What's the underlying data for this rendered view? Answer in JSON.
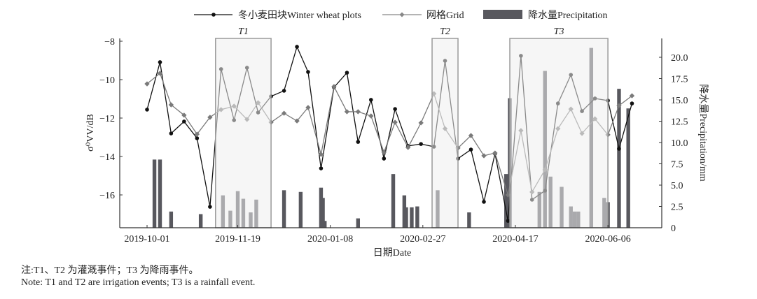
{
  "chart_data": {
    "type": "line+bar",
    "xlabel": "日期Date",
    "ylabel_left": "σ⁰VV/dB",
    "ylabel_right": "降水量Precipitation/mm",
    "ylim_left": [
      -17.7,
      -8
    ],
    "ylim_right": [
      0,
      22
    ],
    "x_range": [
      "2019-09-20",
      "2020-06-31"
    ],
    "x_ticks": [
      "2019-10-01",
      "2019-11-19",
      "2020-01-08",
      "2020-02-27",
      "2020-04-17",
      "2020-06-06"
    ],
    "y_left_ticks": [
      -8,
      -10,
      -12,
      -14,
      -16
    ],
    "y_right_ticks": [
      0,
      2.5,
      5.0,
      7.5,
      10.0,
      12.5,
      15.0,
      17.5,
      20.0
    ],
    "legend": {
      "placement": "top-center",
      "entries": [
        "冬小麦田块Winter wheat plots",
        "网格Grid",
        "降水量Precipitation"
      ]
    },
    "dates": [
      "2019-10-01",
      "2019-10-08",
      "2019-10-14",
      "2019-10-21",
      "2019-10-28",
      "2019-11-04",
      "2019-11-10",
      "2019-11-17",
      "2019-11-24",
      "2019-11-30",
      "2019-12-07",
      "2019-12-14",
      "2019-12-21",
      "2019-12-27",
      "2020-01-03",
      "2020-01-10",
      "2020-01-17",
      "2020-01-23",
      "2020-01-30",
      "2020-02-06",
      "2020-02-12",
      "2020-02-19",
      "2020-02-26",
      "2020-03-04",
      "2020-03-10",
      "2020-03-17",
      "2020-03-24",
      "2020-03-31",
      "2020-04-06",
      "2020-04-13",
      "2020-04-20",
      "2020-04-26",
      "2020-05-03",
      "2020-05-10",
      "2020-05-17",
      "2020-05-23",
      "2020-05-30",
      "2020-06-06",
      "2020-06-12",
      "2020-06-19"
    ],
    "series": [
      {
        "name": "冬小麦田块Winter wheat plots",
        "color": "#111111",
        "marker": "circle",
        "values": [
          -11.56,
          -9.09,
          -12.8,
          -12.18,
          -13.05,
          -16.62,
          -9.45,
          -12.11,
          -9.38,
          -11.71,
          -10.87,
          -10.58,
          -8.29,
          -9.6,
          -14.62,
          -10.4,
          -9.64,
          -13.24,
          -11.05,
          -14.11,
          -11.53,
          -13.45,
          -13.35,
          -13.49,
          -9.02,
          -14.11,
          -13.64,
          -16.36,
          -13.85,
          -17.35,
          -8.76,
          -16.25,
          -15.78,
          -11.24,
          -9.75,
          -11.64,
          -10.98,
          -11.09,
          -13.6,
          -11.24
        ]
      },
      {
        "name": "网格Grid",
        "color": "#7a7a7a",
        "marker": "diamond",
        "values": [
          -10.22,
          -9.67,
          -11.31,
          -11.85,
          -12.84,
          -11.96,
          -11.56,
          -11.38,
          -12.07,
          -11.2,
          -12.22,
          -11.75,
          -12.15,
          -11.45,
          -13.89,
          -10.36,
          -11.67,
          -11.67,
          -11.89,
          -13.78,
          -12.22,
          -13.53,
          -12.25,
          -10.73,
          -12.55,
          -13.56,
          -12.91,
          -13.96,
          -13.82,
          -16.0,
          -12.65,
          -15.85,
          -14.69,
          -12.55,
          -11.53,
          -12.8,
          -12.04,
          -12.87,
          -11.35,
          -10.84
        ]
      }
    ],
    "precipitation": {
      "name": "降水量Precipitation",
      "color": "#58585e",
      "dates": [
        "2019-10-05",
        "2019-10-08",
        "2019-10-14",
        "2019-10-30",
        "2019-11-11",
        "2019-11-15",
        "2019-11-19",
        "2019-11-22",
        "2019-11-26",
        "2019-11-29",
        "2019-12-14",
        "2019-12-23",
        "2020-01-03",
        "2020-01-04",
        "2020-01-05",
        "2020-01-23",
        "2020-02-11",
        "2020-02-17",
        "2020-02-18",
        "2020-02-21",
        "2020-02-24",
        "2020-03-06",
        "2020-03-23",
        "2020-04-12",
        "2020-04-14",
        "2020-04-30",
        "2020-05-03",
        "2020-05-06",
        "2020-05-12",
        "2020-05-17",
        "2020-05-19",
        "2020-05-21",
        "2020-05-28",
        "2020-06-04",
        "2020-06-06",
        "2020-06-12",
        "2020-06-17"
      ],
      "values": [
        8.0,
        8.0,
        1.9,
        1.6,
        3.8,
        2.0,
        4.3,
        3.4,
        1.8,
        3.3,
        4.4,
        4.2,
        4.7,
        3.5,
        0.8,
        1.1,
        6.3,
        3.8,
        2.4,
        2.4,
        2.5,
        4.4,
        1.8,
        6.3,
        15.2,
        4.2,
        18.4,
        6.0,
        4.8,
        2.5,
        1.9,
        1.9,
        21.1,
        3.5,
        3.0,
        16.3,
        14.0
      ]
    },
    "events": [
      {
        "label": "T1",
        "start": "2019-11-07",
        "end": "2019-12-07",
        "type": "irrigation"
      },
      {
        "label": "T2",
        "start": "2020-03-03",
        "end": "2020-03-17",
        "type": "irrigation"
      },
      {
        "label": "T3",
        "start": "2020-04-14",
        "end": "2020-06-06",
        "type": "rainfall"
      }
    ]
  },
  "notes": {
    "zh": "注:T1、T2 为灌溉事件；T3 为降雨事件。",
    "en": "Note: T1 and T2 are irrigation events; T3 is a rainfall event."
  }
}
